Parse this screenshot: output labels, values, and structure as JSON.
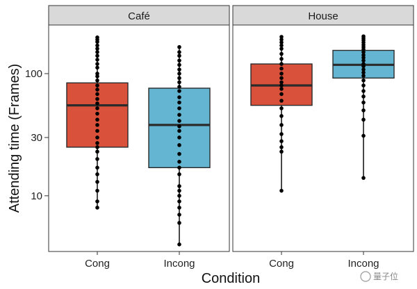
{
  "chart_data": {
    "type": "boxplot",
    "ylabel": "Attending time (Frames)",
    "xlabel": "Condition",
    "y_scale": "log10",
    "ylim": [
      3.5,
      250
    ],
    "yticks": [
      10,
      30,
      100
    ],
    "categories": [
      "Cong",
      "Incong"
    ],
    "fill_colors": {
      "Cong": "#d9513a",
      "Incong": "#63b5d2"
    },
    "facets": [
      {
        "label": "Café",
        "groups": [
          {
            "condition": "Cong",
            "q1": 25,
            "median": 55,
            "q3": 84,
            "whisker_low": 8,
            "whisker_high": 198,
            "points": [
              198,
              190,
              182,
              170,
              160,
              150,
              140,
              130,
              120,
              112,
              100,
              95,
              88,
              80,
              74,
              68,
              62,
              57,
              52,
              47,
              42,
              38,
              34,
              30,
              27,
              25,
              23,
              20,
              17,
              15,
              13,
              11,
              9,
              8
            ]
          },
          {
            "condition": "Incong",
            "q1": 17,
            "median": 38,
            "q3": 76,
            "whisker_low": 4,
            "whisker_high": 165,
            "points": [
              165,
              150,
              140,
              128,
              118,
              108,
              100,
              92,
              85,
              78,
              72,
              64,
              58,
              52,
              46,
              41,
              37,
              34,
              30,
              26,
              22,
              19,
              17,
              15,
              12,
              11,
              10,
              9,
              8,
              7,
              6,
              4
            ]
          }
        ]
      },
      {
        "label": "House",
        "groups": [
          {
            "condition": "Cong",
            "q1": 55,
            "median": 80,
            "q3": 120,
            "whisker_low": 11,
            "whisker_high": 200,
            "points": [
              200,
              190,
              180,
              170,
              160,
              145,
              132,
              120,
              110,
              100,
              92,
              85,
              80,
              75,
              68,
              60,
              52,
              45,
              38,
              32,
              28,
              25,
              23,
              11
            ]
          },
          {
            "condition": "Incong",
            "q1": 92,
            "median": 118,
            "q3": 155,
            "whisker_low": 14,
            "whisker_high": 202,
            "points": [
              202,
              195,
              188,
              180,
              172,
              165,
              158,
              150,
              142,
              135,
              128,
              120,
              115,
              108,
              102,
              96,
              88,
              80,
              72,
              65,
              58,
              50,
              42,
              31,
              14
            ]
          }
        ]
      }
    ]
  },
  "watermark": "量子位"
}
